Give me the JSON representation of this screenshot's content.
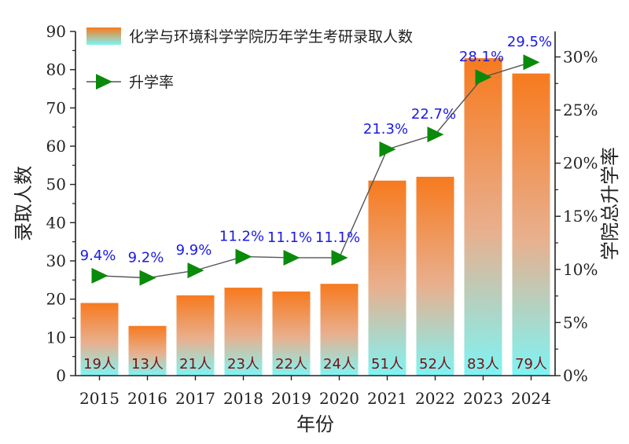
{
  "chart_data": {
    "type": "bar",
    "categories": [
      "2015",
      "2016",
      "2017",
      "2018",
      "2019",
      "2020",
      "2021",
      "2022",
      "2023",
      "2024"
    ],
    "series": [
      {
        "name": "化学与环境科学学院历年学生考研录取人数",
        "axis": "left",
        "values": [
          19,
          13,
          21,
          23,
          22,
          24,
          51,
          52,
          83,
          79
        ],
        "labels": [
          "19人",
          "13人",
          "21人",
          "23人",
          "22人",
          "24人",
          "51人",
          "52人",
          "83人",
          "79人"
        ]
      },
      {
        "name": "升学率",
        "axis": "right",
        "type": "line",
        "values": [
          9.4,
          9.2,
          9.9,
          11.2,
          11.1,
          11.1,
          21.3,
          22.7,
          28.1,
          29.5
        ],
        "labels": [
          "9.4%",
          "9.2%",
          "9.9%",
          "11.2%",
          "11.1%",
          "11.1%",
          "21.3%",
          "22.7%",
          "28.1%",
          "29.5%"
        ]
      }
    ],
    "xlabel": "年份",
    "ylabel": "录取人数",
    "y2label": "学院总升学率",
    "ylim": [
      0,
      90
    ],
    "yticks": [
      0,
      10,
      20,
      30,
      40,
      50,
      60,
      70,
      80,
      90
    ],
    "ytick_labels": [
      "0",
      "10",
      "20",
      "30",
      "40",
      "50",
      "60",
      "70",
      "80",
      "90"
    ],
    "y2lim": [
      0,
      32.4
    ],
    "y2ticks": [
      0,
      5,
      10,
      15,
      20,
      25,
      30
    ],
    "y2tick_labels": [
      "0%",
      "5%",
      "10%",
      "15%",
      "20%",
      "25%",
      "30%"
    ],
    "legend": [
      "化学与环境科学学院历年学生考研录取人数",
      "升学率"
    ],
    "legend_position": "top-left",
    "colors": {
      "bar_top": "#f77a1e",
      "bar_bottom": "#7ef4f4",
      "line": "#555555",
      "marker": "#0a8a0a",
      "rate_label": "#1a1ae6",
      "bar_label": "#7a1010"
    }
  }
}
